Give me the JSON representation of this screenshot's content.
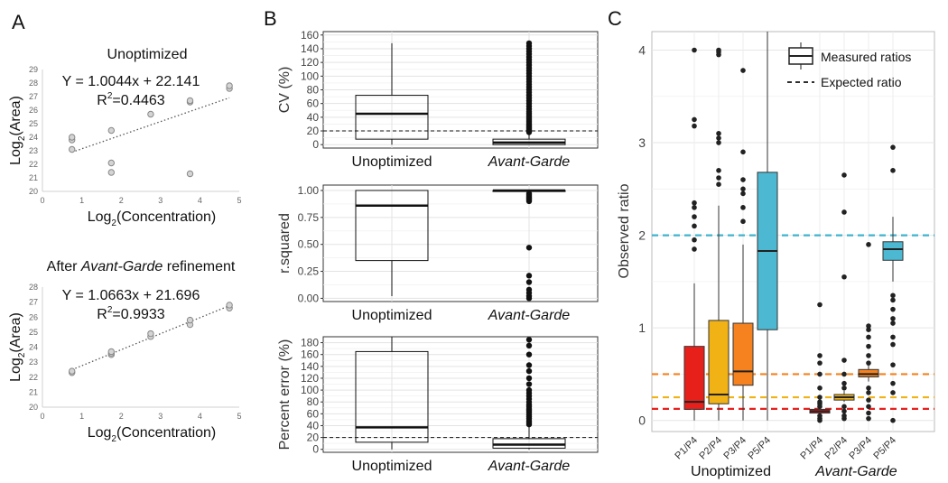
{
  "chart_data": [
    {
      "id": "A1",
      "type": "scatter",
      "panel_label": "A",
      "title": "Unoptimized",
      "xlabel_base": "Log",
      "xlabel_sub": "2",
      "xlabel_rest": "(Concentration)",
      "ylabel_base": "Log",
      "ylabel_sub": "2",
      "ylabel_rest": "(Area)",
      "equation": "Y = 1.0044x + 22.141",
      "r2_base": "R",
      "r2_sup": "2",
      "r2_value": "=0.4463",
      "xlim": [
        0,
        5
      ],
      "ylim": [
        20,
        29
      ],
      "xticks": [
        0,
        1,
        2,
        3,
        4,
        5
      ],
      "yticks": [
        20,
        21,
        22,
        23,
        24,
        25,
        26,
        27,
        28,
        29
      ],
      "points": [
        [
          0.75,
          23.1
        ],
        [
          0.75,
          23.8
        ],
        [
          0.75,
          24.0
        ],
        [
          1.75,
          21.4
        ],
        [
          1.75,
          22.1
        ],
        [
          1.75,
          24.5
        ],
        [
          2.75,
          25.7
        ],
        [
          3.75,
          21.3
        ],
        [
          3.75,
          26.6
        ],
        [
          3.75,
          26.7
        ],
        [
          4.75,
          27.6
        ],
        [
          4.75,
          27.8
        ]
      ],
      "trendline": {
        "slope": 1.0044,
        "intercept": 22.141,
        "x_range": [
          0.75,
          4.75
        ]
      }
    },
    {
      "id": "A2",
      "type": "scatter",
      "title_prefix": "After ",
      "title_italic": "Avant-Garde",
      "title_suffix": " refinement",
      "xlabel_base": "Log",
      "xlabel_sub": "2",
      "xlabel_rest": "(Concentration)",
      "ylabel_base": "Log",
      "ylabel_sub": "2",
      "ylabel_rest": "(Area)",
      "equation": "Y = 1.0663x + 21.696",
      "r2_base": "R",
      "r2_sup": "2",
      "r2_value": "=0.9933",
      "xlim": [
        0,
        5
      ],
      "ylim": [
        20,
        28
      ],
      "xticks": [
        0,
        1,
        2,
        3,
        4,
        5
      ],
      "yticks": [
        20,
        21,
        22,
        23,
        24,
        25,
        26,
        27,
        28
      ],
      "points": [
        [
          0.75,
          22.3
        ],
        [
          0.75,
          22.4
        ],
        [
          1.75,
          23.5
        ],
        [
          1.75,
          23.6
        ],
        [
          1.75,
          23.7
        ],
        [
          2.75,
          24.7
        ],
        [
          2.75,
          24.9
        ],
        [
          3.75,
          25.5
        ],
        [
          3.75,
          25.8
        ],
        [
          4.75,
          26.6
        ],
        [
          4.75,
          26.8
        ]
      ],
      "trendline": {
        "slope": 1.0663,
        "intercept": 21.696,
        "x_range": [
          0.75,
          4.75
        ]
      }
    },
    {
      "id": "B1",
      "type": "box",
      "panel_label": "B",
      "ylabel": "CV (%)",
      "ylim": [
        -5,
        165
      ],
      "yticks": [
        0,
        20,
        40,
        60,
        80,
        100,
        120,
        140,
        160
      ],
      "reference_line": 20,
      "categories": [
        {
          "label": "Unoptimized",
          "italic": false,
          "min": 0,
          "q1": 8,
          "median": 45,
          "q3": 72,
          "max": 148,
          "outliers": []
        },
        {
          "label": "Avant-Garde",
          "italic": true,
          "min": 0,
          "q1": 0,
          "median": 3,
          "q3": 8,
          "max": 16,
          "outliers": [
            18,
            20,
            22,
            24,
            26,
            28,
            30,
            32,
            34,
            36,
            38,
            40,
            42,
            45,
            48,
            52,
            56,
            60,
            64,
            68,
            72,
            76,
            80,
            84,
            88,
            92,
            96,
            100,
            104,
            108,
            112,
            116,
            120,
            124,
            128,
            132,
            136,
            140,
            144,
            148
          ]
        }
      ]
    },
    {
      "id": "B2",
      "type": "box",
      "ylabel": "r.squared",
      "ylim": [
        -0.03,
        1.05
      ],
      "yticks": [
        0,
        0.25,
        0.5,
        0.75,
        1
      ],
      "ytick_labels": [
        "0.00",
        "0.25",
        "0.50",
        "0.75",
        "1.00"
      ],
      "categories": [
        {
          "label": "Unoptimized",
          "italic": false,
          "min": 0.02,
          "q1": 0.35,
          "median": 0.86,
          "q3": 1.0,
          "max": 1.0,
          "outliers": []
        },
        {
          "label": "Avant-Garde",
          "italic": true,
          "min": 0.99,
          "q1": 0.99,
          "median": 1.0,
          "q3": 1.0,
          "max": 1.0,
          "outliers": [
            0.9,
            0.91,
            0.92,
            0.93,
            0.94,
            0.95,
            0.96,
            0.97,
            0.47,
            0.21,
            0.15,
            0.08,
            0.05,
            0.02,
            0.0
          ]
        }
      ]
    },
    {
      "id": "B3",
      "type": "box",
      "ylabel": "Percent error (%)",
      "ylim": [
        -5,
        190
      ],
      "yticks": [
        0,
        20,
        40,
        60,
        80,
        100,
        120,
        140,
        160,
        180
      ],
      "reference_line": 20,
      "categories": [
        {
          "label": "Unoptimized",
          "italic": false,
          "min": 0,
          "q1": 12,
          "median": 37,
          "q3": 165,
          "max": 190,
          "outliers": []
        },
        {
          "label": "Avant-Garde",
          "italic": true,
          "min": 0,
          "q1": 2,
          "median": 8,
          "q3": 18,
          "max": 40,
          "outliers": [
            42,
            45,
            48,
            52,
            55,
            58,
            62,
            65,
            68,
            72,
            75,
            80,
            85,
            90,
            95,
            100,
            110,
            120,
            132,
            142,
            160,
            175,
            185
          ]
        }
      ]
    },
    {
      "id": "C",
      "type": "box",
      "panel_label": "C",
      "ylabel": "Observed ratio",
      "ylim": [
        -0.12,
        4.2
      ],
      "yticks": [
        0,
        1,
        2,
        3,
        4
      ],
      "group_labels": [
        {
          "label": "Unoptimized",
          "italic": false
        },
        {
          "label": "Avant-Garde",
          "italic": true
        }
      ],
      "legend": {
        "measured_label": "Measured ratios",
        "expected_label": "Expected ratio",
        "position": "top-right"
      },
      "expected_ratios": [
        {
          "value": 0.125,
          "color": "#e8201c"
        },
        {
          "value": 0.25,
          "color": "#f0b215"
        },
        {
          "value": 0.5,
          "color": "#f5821f"
        },
        {
          "value": 2.0,
          "color": "#3fb3cf"
        }
      ],
      "boxes": [
        {
          "group": 0,
          "label": "P1/P4",
          "color": "#e8201c",
          "min": 0.0,
          "q1": 0.12,
          "median": 0.2,
          "q3": 0.8,
          "max": 1.48,
          "outliers": [
            1.85,
            1.95,
            2.1,
            2.2,
            2.3,
            2.35,
            3.18,
            3.25,
            4.0
          ]
        },
        {
          "group": 0,
          "label": "P2/P4",
          "color": "#f0b215",
          "min": 0.0,
          "q1": 0.18,
          "median": 0.28,
          "q3": 1.08,
          "max": 2.32,
          "outliers": [
            2.55,
            2.62,
            2.7,
            3.0,
            3.05,
            3.1,
            3.95,
            3.98,
            4.0
          ]
        },
        {
          "group": 0,
          "label": "P3/P4",
          "color": "#f5821f",
          "min": 0.0,
          "q1": 0.38,
          "median": 0.53,
          "q3": 1.05,
          "max": 1.9,
          "outliers": [
            2.15,
            2.3,
            2.45,
            2.5,
            2.6,
            2.9,
            3.78
          ]
        },
        {
          "group": 0,
          "label": "P5/P4",
          "color": "#4db8d1",
          "min": 0.0,
          "q1": 0.98,
          "median": 1.83,
          "q3": 2.68,
          "max": 4.2,
          "outliers": []
        },
        {
          "group": 1,
          "label": "P1/P4",
          "color": "#e8201c",
          "min": 0.07,
          "q1": 0.08,
          "median": 0.1,
          "q3": 0.12,
          "max": 0.14,
          "outliers": [
            0.0,
            0.02,
            0.05,
            0.15,
            0.18,
            0.2,
            0.25,
            0.35,
            0.5,
            0.62,
            0.7,
            1.25
          ]
        },
        {
          "group": 1,
          "label": "P2/P4",
          "color": "#f0b215",
          "min": 0.2,
          "q1": 0.22,
          "median": 0.25,
          "q3": 0.28,
          "max": 0.32,
          "outliers": [
            0.02,
            0.05,
            0.1,
            0.15,
            0.35,
            0.4,
            0.5,
            0.65,
            1.55,
            2.25,
            2.65
          ]
        },
        {
          "group": 1,
          "label": "P3/P4",
          "color": "#f5821f",
          "min": 0.42,
          "q1": 0.47,
          "median": 0.5,
          "q3": 0.55,
          "max": 0.6,
          "outliers": [
            0.02,
            0.08,
            0.15,
            0.22,
            0.3,
            0.35,
            0.62,
            0.7,
            0.8,
            0.9,
            0.98,
            1.02,
            1.9
          ]
        },
        {
          "group": 1,
          "label": "P5/P4",
          "color": "#4db8d1",
          "min": 1.5,
          "q1": 1.73,
          "median": 1.85,
          "q3": 1.93,
          "max": 2.2,
          "outliers": [
            0.0,
            0.3,
            0.4,
            0.6,
            0.82,
            0.9,
            1.05,
            1.1,
            1.2,
            1.3,
            1.35,
            2.7,
            2.95
          ]
        }
      ]
    }
  ]
}
